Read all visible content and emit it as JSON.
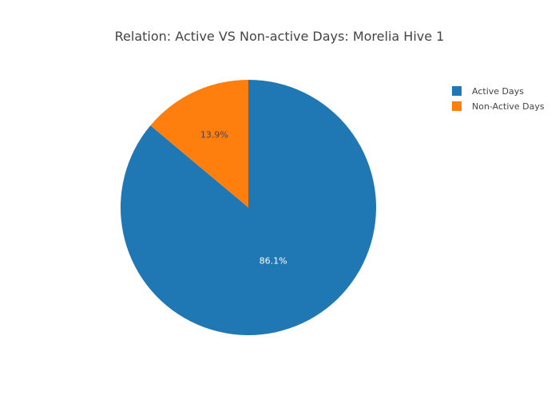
{
  "chart_data": {
    "type": "pie",
    "title": "Relation: Active VS Non-active Days: Morelia Hive 1",
    "slices": [
      {
        "label": "Active Days",
        "value": 86.1,
        "display": "86.1%",
        "color": "#1f77b4",
        "text_color": "#ffffff"
      },
      {
        "label": "Non-Active Days",
        "value": 13.9,
        "display": "13.9%",
        "color": "#ff7f0e",
        "text_color": "#444444"
      }
    ],
    "legend": {
      "placement": "top-right",
      "entries": [
        "Active Days",
        "Non-Active Days"
      ]
    },
    "direction": "clockwise"
  }
}
